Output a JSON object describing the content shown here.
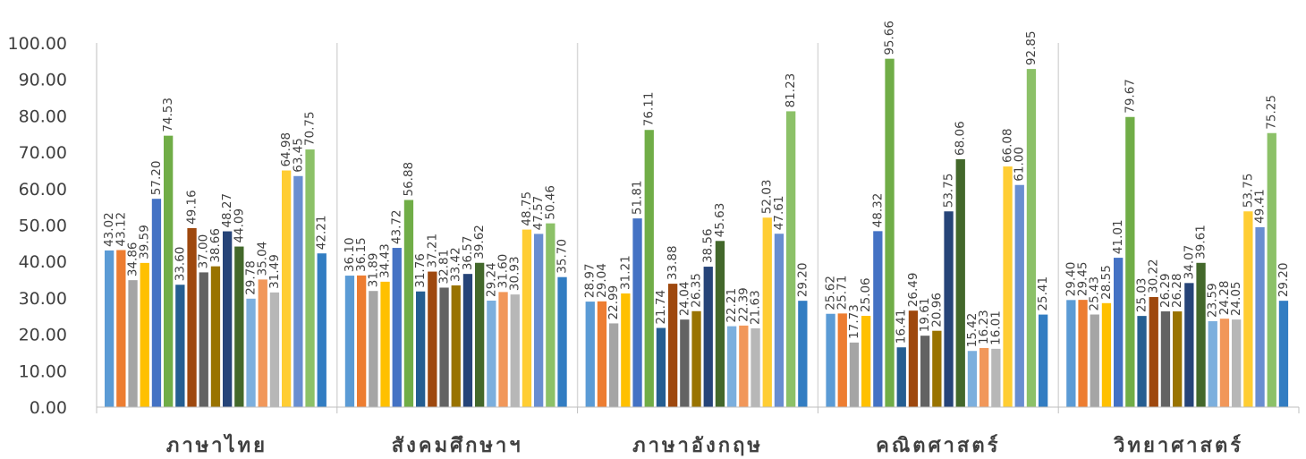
{
  "chart_data": {
    "type": "bar",
    "title": "",
    "xlabel": "",
    "ylabel": "",
    "ylim": [
      0,
      100
    ],
    "yticks": [
      "0.00",
      "10.00",
      "20.00",
      "30.00",
      "40.00",
      "50.00",
      "60.00",
      "70.00",
      "80.00",
      "90.00",
      "100.00"
    ],
    "grid": false,
    "legend": "none",
    "categories": [
      "ภาษาไทย",
      "สังคมศึกษาฯ",
      "ภาษาอังกฤษ",
      "คณิตศาสตร์",
      "วิทยาศาสตร์"
    ],
    "bar_colors": [
      "#5B9BD5",
      "#ED7D31",
      "#A5A5A5",
      "#FFC000",
      "#4472C4",
      "#70AD47",
      "#255E91",
      "#9E480E",
      "#636363",
      "#997300",
      "#264478",
      "#43682B",
      "#7CAFDD",
      "#F1975A",
      "#B7B7B7",
      "#FFCD33",
      "#698ED0",
      "#8CC168",
      "#327DC2"
    ],
    "groups": [
      {
        "category": "ภาษาไทย",
        "values": [
          43.02,
          43.12,
          34.86,
          39.59,
          57.2,
          74.53,
          33.6,
          49.16,
          37.0,
          38.66,
          48.27,
          44.09,
          29.78,
          35.04,
          31.49,
          64.98,
          63.45,
          70.75,
          42.21
        ]
      },
      {
        "category": "สังคมศึกษาฯ",
        "values": [
          36.1,
          36.15,
          31.89,
          34.43,
          43.72,
          56.88,
          31.76,
          37.21,
          32.81,
          33.42,
          36.57,
          39.62,
          29.24,
          31.6,
          30.93,
          48.75,
          47.57,
          50.46,
          35.7
        ]
      },
      {
        "category": "ภาษาอังกฤษ",
        "values": [
          28.97,
          29.04,
          22.99,
          31.21,
          51.81,
          76.11,
          21.74,
          33.88,
          24.04,
          26.35,
          38.56,
          45.63,
          22.21,
          22.39,
          21.63,
          52.03,
          47.61,
          81.23,
          29.2
        ]
      },
      {
        "category": "คณิตศาสตร์",
        "values": [
          25.62,
          25.71,
          17.73,
          25.06,
          48.32,
          95.66,
          16.41,
          26.49,
          19.61,
          20.96,
          53.75,
          68.06,
          15.42,
          16.23,
          16.01,
          66.08,
          61.0,
          92.85,
          25.41
        ]
      },
      {
        "category": "วิทยาศาสตร์",
        "values": [
          29.4,
          29.45,
          25.43,
          28.55,
          41.01,
          79.67,
          25.03,
          30.22,
          26.29,
          26.28,
          34.07,
          39.61,
          23.59,
          24.28,
          24.05,
          53.75,
          49.41,
          75.25,
          29.2
        ]
      }
    ]
  }
}
